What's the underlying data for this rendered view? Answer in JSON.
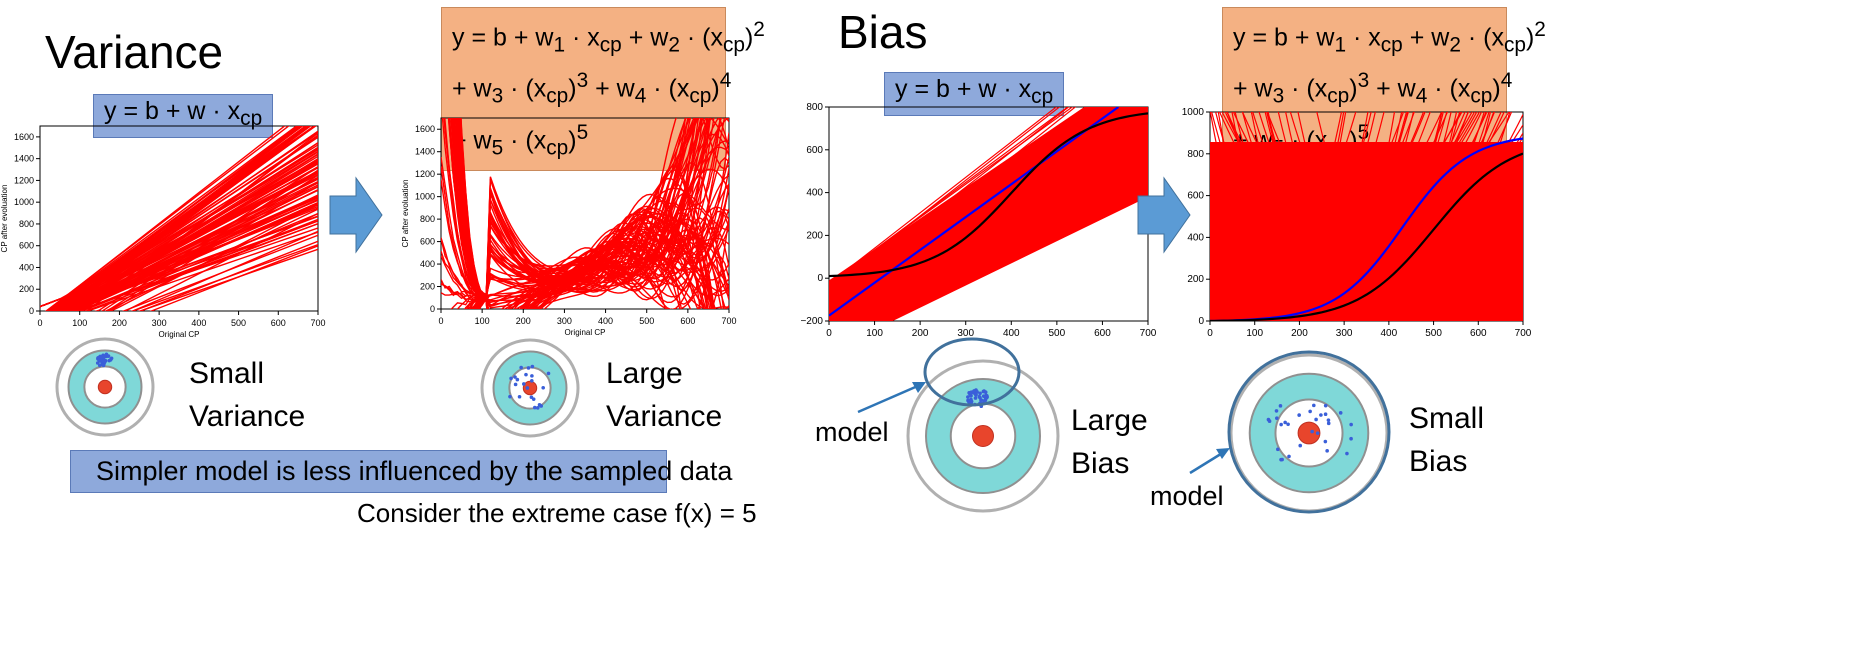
{
  "variance": {
    "title": "Variance",
    "simple_formula": {
      "main": "y = b + w · x",
      "sub": "cp"
    },
    "complex_formula": {
      "line1": [
        {
          "t": "y = b + w"
        },
        {
          "sub": "1"
        },
        {
          "t": " · x"
        },
        {
          "sub": "cp"
        },
        {
          "t": " + w"
        },
        {
          "sub": "2"
        },
        {
          "t": " · (x"
        },
        {
          "sub": "cp"
        },
        {
          "t": ")"
        },
        {
          "sup": "2"
        }
      ],
      "line2": [
        {
          "t": "+ w"
        },
        {
          "sub": "3"
        },
        {
          "t": " · (x"
        },
        {
          "sub": "cp"
        },
        {
          "t": ")"
        },
        {
          "sup": "3"
        },
        {
          "t": " + w"
        },
        {
          "sub": "4"
        },
        {
          "t": " · (x"
        },
        {
          "sub": "cp"
        },
        {
          "t": ")"
        },
        {
          "sup": "4"
        }
      ],
      "line3": [
        {
          "t": "+ w"
        },
        {
          "sub": "5"
        },
        {
          "t": " · (x"
        },
        {
          "sub": "cp"
        },
        {
          "t": ")"
        },
        {
          "sup": "5"
        }
      ]
    },
    "small_label_1": "Small",
    "small_label_2": "Variance",
    "large_label_1": "Large",
    "large_label_2": "Variance",
    "banner": "Simpler model is less influenced by the sampled data",
    "note": "Consider the extreme case f(x) = 5"
  },
  "bias": {
    "title": "Bias",
    "large_label_1": "Large",
    "large_label_2": "Bias",
    "small_label_1": "Small",
    "small_label_2": "Bias",
    "model_label": "model"
  },
  "colors": {
    "fit_lines": "#ff0000",
    "model_average": "#0000ff",
    "true_function": "#000000",
    "target_outer": "#ffffff",
    "target_cyan": "#7fd8d8",
    "target_center": "#e8452c",
    "sample_points": "#3a5fd9",
    "arrow": "#5b9bd5"
  },
  "chart_data": [
    {
      "type": "line",
      "name": "variance-simple",
      "xlabel": "Original CP",
      "ylabel": "CP after evoluation",
      "xlim": [
        0,
        700
      ],
      "ylim": [
        0,
        1700
      ],
      "xticks": [
        0,
        100,
        200,
        300,
        400,
        500,
        600,
        700
      ],
      "yticks": [
        0,
        200,
        400,
        600,
        800,
        1000,
        1200,
        1400,
        1600
      ],
      "description_series": "many linear fits",
      "lines_slope_range": [
        1.3,
        3.0
      ]
    },
    {
      "type": "line",
      "name": "variance-complex",
      "xlabel": "Original CP",
      "ylabel": "CP after evoluation",
      "xlim": [
        0,
        700
      ],
      "ylim": [
        0,
        1700
      ],
      "xticks": [
        0,
        100,
        200,
        300,
        400,
        500,
        600,
        700
      ],
      "yticks": [
        0,
        200,
        400,
        600,
        800,
        1000,
        1200,
        1400,
        1600
      ]
    },
    {
      "type": "line",
      "name": "bias-simple",
      "xlim": [
        0,
        700
      ],
      "ylim": [
        -200,
        800
      ],
      "xticks": [
        0,
        100,
        200,
        300,
        400,
        500,
        600,
        700
      ],
      "yticks": [
        -200,
        0,
        200,
        400,
        600,
        800
      ]
    },
    {
      "type": "line",
      "name": "bias-complex",
      "xlim": [
        0,
        700
      ],
      "ylim": [
        0,
        1000
      ],
      "xticks": [
        0,
        100,
        200,
        300,
        400,
        500,
        600,
        700
      ],
      "yticks": [
        0,
        200,
        400,
        600,
        800,
        1000
      ]
    }
  ]
}
